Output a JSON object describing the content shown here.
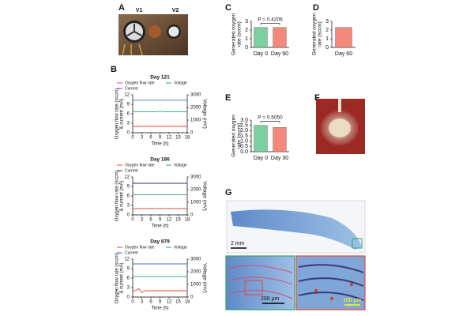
{
  "panel_labels": [
    "A",
    "B",
    "C",
    "D",
    "E",
    "F",
    "G"
  ],
  "photo_labels": {
    "v1": "V1",
    "v2": "V2",
    "scale_g_main": "2 mm",
    "scale_g_left": "200 μm",
    "scale_g_right": "100 μm"
  },
  "chart_data": [
    {
      "type": "line",
      "title": "Day 121",
      "xlabel": "Time (h)",
      "ylabel": [
        "Oxygen flow rate (sccm)",
        "& current (mA)"
      ],
      "y2label": "Voltage (mV)",
      "x": [
        0,
        1,
        2,
        3,
        4,
        5,
        6,
        7,
        8,
        9,
        10,
        11,
        12,
        13,
        14,
        15,
        16,
        17,
        18
      ],
      "xlim": [
        0,
        18
      ],
      "xticks": [
        0,
        3,
        6,
        9,
        12,
        15,
        18
      ],
      "ylim": [
        0,
        12
      ],
      "yticks": [
        0,
        3,
        6,
        9,
        12
      ],
      "y2lim": [
        0,
        3000
      ],
      "y2ticks": [
        0,
        1000,
        2000,
        3000
      ],
      "series": [
        {
          "name": "Oxygen flow rate",
          "color": "#e8453c",
          "values": [
            2,
            2,
            2,
            2,
            2,
            2,
            2,
            2,
            2,
            2,
            2,
            2,
            2,
            2,
            2,
            2,
            2,
            2,
            2
          ]
        },
        {
          "name": "Voltage",
          "color": "#2fa36b",
          "axis": "y2",
          "values": [
            1650,
            1650,
            1650,
            1650,
            1650,
            1650,
            1650,
            1650,
            1650,
            1720,
            1650,
            1650,
            1650,
            1650,
            1650,
            1650,
            1650,
            1650,
            1650
          ]
        },
        {
          "name": "Current",
          "color": "#3b6fd4",
          "values": [
            10.3,
            10.3,
            10.3,
            10.3,
            10.3,
            10.3,
            10.3,
            10.3,
            10.3,
            10.3,
            10.3,
            10.3,
            10.3,
            10.3,
            10.3,
            10.3,
            10.3,
            10.3,
            10.3
          ]
        }
      ]
    },
    {
      "type": "line",
      "title": "Day 186",
      "xlabel": "Time (h)",
      "ylabel": [
        "Oxygen flow rate (sccm)",
        "& current (mA)"
      ],
      "y2label": "Voltage (mV)",
      "x": [
        0,
        1,
        2,
        3,
        4,
        5,
        6,
        7,
        8,
        9,
        10,
        11,
        12,
        13,
        14,
        15,
        16,
        17,
        18
      ],
      "xlim": [
        0,
        18
      ],
      "xticks": [
        0,
        3,
        6,
        9,
        12,
        15,
        18
      ],
      "ylim": [
        0,
        12
      ],
      "yticks": [
        0,
        3,
        6,
        9,
        12
      ],
      "y2lim": [
        0,
        3000
      ],
      "y2ticks": [
        0,
        1000,
        2000,
        3000
      ],
      "series": [
        {
          "name": "Oxygen flow rate",
          "color": "#e8453c",
          "values": [
            2,
            2,
            2,
            2,
            2,
            2,
            2,
            2,
            2,
            2,
            2,
            2,
            2,
            2,
            2,
            2,
            2,
            2,
            2
          ]
        },
        {
          "name": "Voltage",
          "color": "#2fa36b",
          "axis": "y2",
          "values": [
            1600,
            1600,
            1600,
            1600,
            1600,
            1600,
            1600,
            1600,
            1600,
            1600,
            1600,
            1600,
            1600,
            1600,
            1600,
            1600,
            1600,
            1600,
            1600
          ]
        },
        {
          "name": "Current",
          "color": "#2b3a66",
          "values": [
            10,
            10,
            10,
            10,
            10,
            10,
            10,
            10,
            10,
            10,
            10,
            10,
            10,
            10,
            10,
            10,
            10,
            10,
            10
          ]
        }
      ]
    },
    {
      "type": "line",
      "title": "Day 879",
      "xlabel": "Time (h)",
      "ylabel": [
        "Oxygen flow rate (sccm)",
        "& current (mA)"
      ],
      "y2label": "Voltage (mV)",
      "x": [
        0,
        1,
        2,
        3,
        4,
        5,
        6,
        7,
        8,
        9,
        10,
        11,
        12,
        13,
        14,
        15,
        16,
        17,
        18
      ],
      "xlim": [
        0,
        18
      ],
      "xticks": [
        0,
        3,
        6,
        9,
        12,
        15,
        18
      ],
      "ylim": [
        0,
        12
      ],
      "yticks": [
        0,
        3,
        6,
        9,
        12
      ],
      "y2lim": [
        0,
        3000
      ],
      "y2ticks": [
        0,
        1000,
        2000,
        3000
      ],
      "series": [
        {
          "name": "Oxygen flow rate",
          "color": "#e8453c",
          "values": [
            2,
            2,
            2.7,
            1.4,
            2,
            2,
            2,
            2,
            2,
            2,
            2,
            2,
            2,
            2,
            2,
            2,
            2,
            2,
            2
          ]
        },
        {
          "name": "Voltage",
          "color": "#2fa36b",
          "axis": "y2",
          "values": [
            1620,
            1620,
            1620,
            1620,
            1620,
            1620,
            1620,
            1620,
            1620,
            1620,
            1620,
            1620,
            1620,
            1620,
            1620,
            1620,
            1620,
            1620,
            1620
          ]
        },
        {
          "name": "Current",
          "color": "#3b6fd4",
          "values": [
            10.5,
            10.5,
            10.5,
            10.5,
            10.5,
            10.5,
            10.5,
            10.5,
            10.5,
            10.5,
            10.5,
            10.5,
            10.5,
            10.5,
            10.5,
            10.5,
            10.5,
            10.5,
            10.5
          ]
        }
      ]
    },
    {
      "type": "bar",
      "ylabel": [
        "Generated oxygen",
        "rate (sccm)"
      ],
      "categories": [
        "Day 0",
        "Day 90"
      ],
      "values": [
        2.3,
        2.3
      ],
      "colors": [
        "#7ccf9f",
        "#f4897b"
      ],
      "ylim": [
        0,
        3
      ],
      "yticks": [
        0,
        1,
        2,
        3
      ],
      "annotation": "P = 0.4206"
    },
    {
      "type": "bar",
      "ylabel": [
        "Generated oxygen",
        "rate (sccm)"
      ],
      "categories": [
        "Day 60"
      ],
      "values": [
        2.3
      ],
      "colors": [
        "#f4897b"
      ],
      "ylim": [
        0,
        3
      ],
      "yticks": [
        0,
        1,
        2,
        3
      ]
    },
    {
      "type": "bar",
      "ylabel": [
        "Generated oxygen",
        "rate (sccm)"
      ],
      "categories": [
        "Day 0",
        "Day 30"
      ],
      "values": [
        2.5,
        2.3
      ],
      "colors": [
        "#7ccf9f",
        "#f4897b"
      ],
      "ylim": [
        0,
        3
      ],
      "yticks": [
        {
          "value": 0,
          "label": "0.0"
        },
        {
          "value": 0.5,
          "label": "0.5"
        },
        {
          "value": 1,
          "label": "1.0"
        },
        {
          "value": 1.5,
          "label": "1.5"
        },
        {
          "value": 2,
          "label": "2.0"
        },
        {
          "value": 2.5,
          "label": "2.5"
        },
        {
          "value": 3,
          "label": "3.0"
        }
      ],
      "annotation": "P = 0.5050"
    }
  ]
}
